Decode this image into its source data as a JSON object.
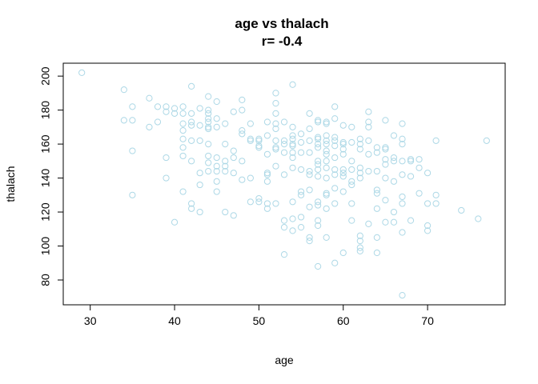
{
  "chart_data": {
    "type": "scatter",
    "title": "age vs thalach",
    "subtitle": "r= -0.4",
    "xlabel": "age",
    "ylabel": "thalach",
    "xlim": [
      26.8,
      79.2
    ],
    "ylim": [
      65.4,
      207.6
    ],
    "xticks": [
      30,
      40,
      50,
      60,
      70
    ],
    "yticks": [
      80,
      100,
      120,
      140,
      160,
      180,
      200
    ],
    "point_color": "#ADD8E6",
    "points": [
      [
        29,
        202
      ],
      [
        34,
        192
      ],
      [
        34,
        174
      ],
      [
        35,
        182
      ],
      [
        35,
        174
      ],
      [
        35,
        156
      ],
      [
        35,
        130
      ],
      [
        37,
        187
      ],
      [
        37,
        170
      ],
      [
        38,
        173
      ],
      [
        38,
        182
      ],
      [
        39,
        182
      ],
      [
        39,
        179
      ],
      [
        39,
        152
      ],
      [
        39,
        140
      ],
      [
        40,
        181
      ],
      [
        40,
        178
      ],
      [
        40,
        114
      ],
      [
        41,
        182
      ],
      [
        41,
        178
      ],
      [
        41,
        172
      ],
      [
        41,
        168
      ],
      [
        41,
        163
      ],
      [
        41,
        158
      ],
      [
        41,
        153
      ],
      [
        41,
        132
      ],
      [
        42,
        194
      ],
      [
        42,
        178
      ],
      [
        42,
        173
      ],
      [
        42,
        171
      ],
      [
        42,
        162
      ],
      [
        42,
        150
      ],
      [
        42,
        125
      ],
      [
        42,
        122
      ],
      [
        43,
        181
      ],
      [
        43,
        171
      ],
      [
        43,
        162
      ],
      [
        43,
        143
      ],
      [
        43,
        136
      ],
      [
        43,
        120
      ],
      [
        44,
        188
      ],
      [
        44,
        180
      ],
      [
        44,
        178
      ],
      [
        44,
        175
      ],
      [
        44,
        173
      ],
      [
        44,
        170
      ],
      [
        44,
        169
      ],
      [
        44,
        160
      ],
      [
        44,
        153
      ],
      [
        44,
        149
      ],
      [
        44,
        144
      ],
      [
        45,
        185
      ],
      [
        45,
        175
      ],
      [
        45,
        170
      ],
      [
        45,
        152
      ],
      [
        45,
        147
      ],
      [
        45,
        144
      ],
      [
        45,
        138
      ],
      [
        45,
        132
      ],
      [
        46,
        172
      ],
      [
        46,
        160
      ],
      [
        46,
        150
      ],
      [
        46,
        147
      ],
      [
        46,
        144
      ],
      [
        46,
        120
      ],
      [
        47,
        179
      ],
      [
        47,
        156
      ],
      [
        47,
        152
      ],
      [
        47,
        143
      ],
      [
        47,
        118
      ],
      [
        48,
        186
      ],
      [
        48,
        180
      ],
      [
        48,
        168
      ],
      [
        48,
        166
      ],
      [
        48,
        150
      ],
      [
        48,
        139
      ],
      [
        49,
        172
      ],
      [
        49,
        163
      ],
      [
        49,
        162
      ],
      [
        49,
        140
      ],
      [
        49,
        126
      ],
      [
        50,
        163
      ],
      [
        50,
        162
      ],
      [
        50,
        159
      ],
      [
        50,
        158
      ],
      [
        50,
        128
      ],
      [
        50,
        126
      ],
      [
        51,
        173
      ],
      [
        51,
        165
      ],
      [
        51,
        154
      ],
      [
        51,
        143
      ],
      [
        51,
        142
      ],
      [
        51,
        138
      ],
      [
        51,
        125
      ],
      [
        51,
        122
      ],
      [
        52,
        190
      ],
      [
        52,
        184
      ],
      [
        52,
        178
      ],
      [
        52,
        172
      ],
      [
        52,
        169
      ],
      [
        52,
        162
      ],
      [
        52,
        158
      ],
      [
        52,
        157
      ],
      [
        52,
        147
      ],
      [
        52,
        125
      ],
      [
        53,
        173
      ],
      [
        53,
        162
      ],
      [
        53,
        160
      ],
      [
        53,
        155
      ],
      [
        53,
        142
      ],
      [
        53,
        115
      ],
      [
        53,
        111
      ],
      [
        53,
        95
      ],
      [
        54,
        195
      ],
      [
        54,
        170
      ],
      [
        54,
        165
      ],
      [
        54,
        163
      ],
      [
        54,
        160
      ],
      [
        54,
        159
      ],
      [
        54,
        155
      ],
      [
        54,
        152
      ],
      [
        54,
        146
      ],
      [
        54,
        126
      ],
      [
        54,
        116
      ],
      [
        54,
        109
      ],
      [
        55,
        166
      ],
      [
        55,
        161
      ],
      [
        55,
        155
      ],
      [
        55,
        145
      ],
      [
        55,
        132
      ],
      [
        55,
        130
      ],
      [
        55,
        117
      ],
      [
        55,
        111
      ],
      [
        56,
        178
      ],
      [
        56,
        169
      ],
      [
        56,
        162
      ],
      [
        56,
        155
      ],
      [
        56,
        144
      ],
      [
        56,
        142
      ],
      [
        56,
        133
      ],
      [
        56,
        123
      ],
      [
        56,
        105
      ],
      [
        56,
        103
      ],
      [
        57,
        174
      ],
      [
        57,
        173
      ],
      [
        57,
        164
      ],
      [
        57,
        163
      ],
      [
        57,
        160
      ],
      [
        57,
        158
      ],
      [
        57,
        150
      ],
      [
        57,
        148
      ],
      [
        57,
        145
      ],
      [
        57,
        141
      ],
      [
        57,
        126
      ],
      [
        57,
        124
      ],
      [
        57,
        115
      ],
      [
        57,
        112
      ],
      [
        57,
        88
      ],
      [
        58,
        173
      ],
      [
        58,
        172
      ],
      [
        58,
        165
      ],
      [
        58,
        162
      ],
      [
        58,
        160
      ],
      [
        58,
        156
      ],
      [
        58,
        154
      ],
      [
        58,
        150
      ],
      [
        58,
        146
      ],
      [
        58,
        140
      ],
      [
        58,
        131
      ],
      [
        58,
        130
      ],
      [
        58,
        122
      ],
      [
        58,
        105
      ],
      [
        59,
        182
      ],
      [
        59,
        175
      ],
      [
        59,
        164
      ],
      [
        59,
        162
      ],
      [
        59,
        159
      ],
      [
        59,
        152
      ],
      [
        59,
        145
      ],
      [
        59,
        142
      ],
      [
        59,
        134
      ],
      [
        59,
        125
      ],
      [
        59,
        90
      ],
      [
        60,
        171
      ],
      [
        60,
        161
      ],
      [
        60,
        160
      ],
      [
        60,
        157
      ],
      [
        60,
        154
      ],
      [
        60,
        145
      ],
      [
        60,
        143
      ],
      [
        60,
        141
      ],
      [
        60,
        132
      ],
      [
        60,
        96
      ],
      [
        61,
        170
      ],
      [
        61,
        161
      ],
      [
        61,
        150
      ],
      [
        61,
        145
      ],
      [
        61,
        138
      ],
      [
        61,
        136
      ],
      [
        61,
        125
      ],
      [
        61,
        115
      ],
      [
        62,
        163
      ],
      [
        62,
        160
      ],
      [
        62,
        157
      ],
      [
        62,
        146
      ],
      [
        62,
        143
      ],
      [
        62,
        140
      ],
      [
        62,
        106
      ],
      [
        62,
        103
      ],
      [
        62,
        99
      ],
      [
        62,
        97
      ],
      [
        63,
        179
      ],
      [
        63,
        173
      ],
      [
        63,
        170
      ],
      [
        63,
        162
      ],
      [
        63,
        154
      ],
      [
        63,
        144
      ],
      [
        63,
        113
      ],
      [
        64,
        158
      ],
      [
        64,
        155
      ],
      [
        64,
        144
      ],
      [
        64,
        133
      ],
      [
        64,
        131
      ],
      [
        64,
        122
      ],
      [
        64,
        105
      ],
      [
        64,
        96
      ],
      [
        65,
        174
      ],
      [
        65,
        158
      ],
      [
        65,
        157
      ],
      [
        65,
        151
      ],
      [
        65,
        148
      ],
      [
        65,
        140
      ],
      [
        65,
        127
      ],
      [
        65,
        114
      ],
      [
        66,
        165
      ],
      [
        66,
        152
      ],
      [
        66,
        150
      ],
      [
        66,
        138
      ],
      [
        66,
        120
      ],
      [
        66,
        114
      ],
      [
        67,
        172
      ],
      [
        67,
        163
      ],
      [
        67,
        160
      ],
      [
        67,
        150
      ],
      [
        67,
        142
      ],
      [
        67,
        129
      ],
      [
        67,
        125
      ],
      [
        67,
        108
      ],
      [
        67,
        71
      ],
      [
        68,
        151
      ],
      [
        68,
        150
      ],
      [
        68,
        141
      ],
      [
        68,
        115
      ],
      [
        69,
        151
      ],
      [
        69,
        146
      ],
      [
        69,
        131
      ],
      [
        70,
        143
      ],
      [
        70,
        125
      ],
      [
        70,
        112
      ],
      [
        70,
        109
      ],
      [
        71,
        162
      ],
      [
        71,
        130
      ],
      [
        71,
        125
      ],
      [
        74,
        121
      ],
      [
        76,
        116
      ],
      [
        77,
        162
      ]
    ]
  }
}
